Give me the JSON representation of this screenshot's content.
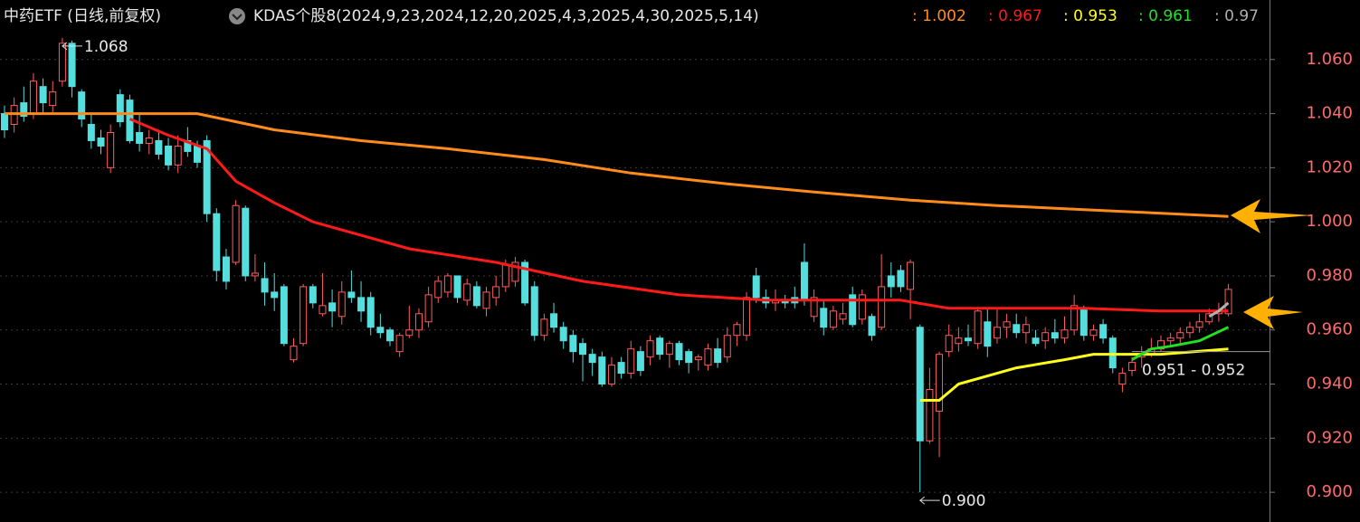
{
  "chart_data": {
    "type": "candlestick",
    "title": "中药ETF (日线,前复权)",
    "indicator": "KDAS个股8(2024,9,23,2024,12,20,2025,4,3,2025,4,30,2025,5,14)",
    "ylim": [
      0.889,
      1.082
    ],
    "yticks": [
      {
        "value": 0.9,
        "label": "0.900"
      },
      {
        "value": 0.92,
        "label": "0.920"
      },
      {
        "value": 0.94,
        "label": "0.940"
      },
      {
        "value": 0.96,
        "label": "0.960"
      },
      {
        "value": 0.98,
        "label": "0.980"
      },
      {
        "value": 1.0,
        "label": "1.000"
      },
      {
        "value": 1.02,
        "label": "1.020"
      },
      {
        "value": 1.04,
        "label": "1.040"
      },
      {
        "value": 1.06,
        "label": "1.060"
      }
    ],
    "grid": true,
    "up_color": "#ff5c5c",
    "down_color": "#54dede",
    "candles": [
      {
        "open": 1.04,
        "high": 1.043,
        "low": 1.031,
        "close": 1.034
      },
      {
        "open": 1.036,
        "high": 1.046,
        "low": 1.033,
        "close": 1.043
      },
      {
        "open": 1.044,
        "high": 1.05,
        "low": 1.037,
        "close": 1.039
      },
      {
        "open": 1.04,
        "high": 1.055,
        "low": 1.038,
        "close": 1.052
      },
      {
        "open": 1.05,
        "high": 1.053,
        "low": 1.04,
        "close": 1.044
      },
      {
        "open": 1.043,
        "high": 1.052,
        "low": 1.04,
        "close": 1.048
      },
      {
        "open": 1.052,
        "high": 1.068,
        "low": 1.05,
        "close": 1.066
      },
      {
        "open": 1.066,
        "high": 1.067,
        "low": 1.046,
        "close": 1.05
      },
      {
        "open": 1.048,
        "high": 1.049,
        "low": 1.035,
        "close": 1.038
      },
      {
        "open": 1.036,
        "high": 1.04,
        "low": 1.027,
        "close": 1.03
      },
      {
        "open": 1.031,
        "high": 1.034,
        "low": 1.025,
        "close": 1.028
      },
      {
        "open": 1.02,
        "high": 1.036,
        "low": 1.018,
        "close": 1.033
      },
      {
        "open": 1.047,
        "high": 1.049,
        "low": 1.035,
        "close": 1.037
      },
      {
        "open": 1.045,
        "high": 1.047,
        "low": 1.029,
        "close": 1.03
      },
      {
        "open": 1.033,
        "high": 1.04,
        "low": 1.026,
        "close": 1.029
      },
      {
        "open": 1.029,
        "high": 1.034,
        "low": 1.025,
        "close": 1.031
      },
      {
        "open": 1.03,
        "high": 1.034,
        "low": 1.023,
        "close": 1.025
      },
      {
        "open": 1.028,
        "high": 1.031,
        "low": 1.019,
        "close": 1.021
      },
      {
        "open": 1.021,
        "high": 1.032,
        "low": 1.018,
        "close": 1.028
      },
      {
        "open": 1.03,
        "high": 1.035,
        "low": 1.024,
        "close": 1.026
      },
      {
        "open": 1.028,
        "high": 1.03,
        "low": 1.02,
        "close": 1.022
      },
      {
        "open": 1.03,
        "high": 1.032,
        "low": 1.0,
        "close": 1.003
      },
      {
        "open": 1.003,
        "high": 1.005,
        "low": 0.978,
        "close": 0.982
      },
      {
        "open": 0.987,
        "high": 0.99,
        "low": 0.975,
        "close": 0.978
      },
      {
        "open": 0.985,
        "high": 1.008,
        "low": 0.984,
        "close": 1.006
      },
      {
        "open": 1.005,
        "high": 1.006,
        "low": 0.978,
        "close": 0.98
      },
      {
        "open": 0.98,
        "high": 0.988,
        "low": 0.978,
        "close": 0.981
      },
      {
        "open": 0.979,
        "high": 0.985,
        "low": 0.969,
        "close": 0.974
      },
      {
        "open": 0.974,
        "high": 0.981,
        "low": 0.967,
        "close": 0.972
      },
      {
        "open": 0.976,
        "high": 0.977,
        "low": 0.954,
        "close": 0.955
      },
      {
        "open": 0.949,
        "high": 0.957,
        "low": 0.948,
        "close": 0.954
      },
      {
        "open": 0.955,
        "high": 0.977,
        "low": 0.954,
        "close": 0.976
      },
      {
        "open": 0.976,
        "high": 0.977,
        "low": 0.968,
        "close": 0.97
      },
      {
        "open": 0.966,
        "high": 0.981,
        "low": 0.965,
        "close": 0.969
      },
      {
        "open": 0.97,
        "high": 0.975,
        "low": 0.961,
        "close": 0.967
      },
      {
        "open": 0.965,
        "high": 0.978,
        "low": 0.962,
        "close": 0.974
      },
      {
        "open": 0.974,
        "high": 0.982,
        "low": 0.97,
        "close": 0.972
      },
      {
        "open": 0.972,
        "high": 0.978,
        "low": 0.963,
        "close": 0.967
      },
      {
        "open": 0.972,
        "high": 0.974,
        "low": 0.958,
        "close": 0.961
      },
      {
        "open": 0.961,
        "high": 0.966,
        "low": 0.957,
        "close": 0.959
      },
      {
        "open": 0.96,
        "high": 0.961,
        "low": 0.954,
        "close": 0.956
      },
      {
        "open": 0.952,
        "high": 0.959,
        "low": 0.95,
        "close": 0.958
      },
      {
        "open": 0.958,
        "high": 0.969,
        "low": 0.957,
        "close": 0.96
      },
      {
        "open": 0.96,
        "high": 0.968,
        "low": 0.957,
        "close": 0.966
      },
      {
        "open": 0.963,
        "high": 0.976,
        "low": 0.961,
        "close": 0.973
      },
      {
        "open": 0.972,
        "high": 0.98,
        "low": 0.97,
        "close": 0.978
      },
      {
        "open": 0.974,
        "high": 0.981,
        "low": 0.972,
        "close": 0.98
      },
      {
        "open": 0.98,
        "high": 0.98,
        "low": 0.97,
        "close": 0.972
      },
      {
        "open": 0.971,
        "high": 0.979,
        "low": 0.969,
        "close": 0.977
      },
      {
        "open": 0.976,
        "high": 0.978,
        "low": 0.968,
        "close": 0.969
      },
      {
        "open": 0.968,
        "high": 0.976,
        "low": 0.965,
        "close": 0.974
      },
      {
        "open": 0.972,
        "high": 0.98,
        "low": 0.969,
        "close": 0.976
      },
      {
        "open": 0.976,
        "high": 0.986,
        "low": 0.974,
        "close": 0.984
      },
      {
        "open": 0.978,
        "high": 0.987,
        "low": 0.976,
        "close": 0.985
      },
      {
        "open": 0.985,
        "high": 0.986,
        "low": 0.969,
        "close": 0.97
      },
      {
        "open": 0.976,
        "high": 0.978,
        "low": 0.956,
        "close": 0.958
      },
      {
        "open": 0.958,
        "high": 0.966,
        "low": 0.956,
        "close": 0.964
      },
      {
        "open": 0.966,
        "high": 0.97,
        "low": 0.959,
        "close": 0.961
      },
      {
        "open": 0.961,
        "high": 0.963,
        "low": 0.953,
        "close": 0.956
      },
      {
        "open": 0.958,
        "high": 0.96,
        "low": 0.948,
        "close": 0.952
      },
      {
        "open": 0.955,
        "high": 0.957,
        "low": 0.941,
        "close": 0.951
      },
      {
        "open": 0.951,
        "high": 0.953,
        "low": 0.943,
        "close": 0.948
      },
      {
        "open": 0.95,
        "high": 0.952,
        "low": 0.939,
        "close": 0.94
      },
      {
        "open": 0.94,
        "high": 0.95,
        "low": 0.939,
        "close": 0.947
      },
      {
        "open": 0.948,
        "high": 0.95,
        "low": 0.942,
        "close": 0.944
      },
      {
        "open": 0.944,
        "high": 0.956,
        "low": 0.942,
        "close": 0.953
      },
      {
        "open": 0.952,
        "high": 0.954,
        "low": 0.943,
        "close": 0.945
      },
      {
        "open": 0.95,
        "high": 0.958,
        "low": 0.947,
        "close": 0.956
      },
      {
        "open": 0.957,
        "high": 0.958,
        "low": 0.949,
        "close": 0.951
      },
      {
        "open": 0.951,
        "high": 0.956,
        "low": 0.946,
        "close": 0.955
      },
      {
        "open": 0.955,
        "high": 0.956,
        "low": 0.947,
        "close": 0.949
      },
      {
        "open": 0.952,
        "high": 0.953,
        "low": 0.944,
        "close": 0.948
      },
      {
        "open": 0.949,
        "high": 0.951,
        "low": 0.945,
        "close": 0.95
      },
      {
        "open": 0.947,
        "high": 0.955,
        "low": 0.945,
        "close": 0.953
      },
      {
        "open": 0.953,
        "high": 0.957,
        "low": 0.946,
        "close": 0.948
      },
      {
        "open": 0.95,
        "high": 0.961,
        "low": 0.948,
        "close": 0.958
      },
      {
        "open": 0.958,
        "high": 0.963,
        "low": 0.954,
        "close": 0.962
      },
      {
        "open": 0.958,
        "high": 0.974,
        "low": 0.956,
        "close": 0.972
      },
      {
        "open": 0.98,
        "high": 0.983,
        "low": 0.97,
        "close": 0.972
      },
      {
        "open": 0.972,
        "high": 0.975,
        "low": 0.968,
        "close": 0.97
      },
      {
        "open": 0.97,
        "high": 0.975,
        "low": 0.967,
        "close": 0.971
      },
      {
        "open": 0.971,
        "high": 0.973,
        "low": 0.968,
        "close": 0.97
      },
      {
        "open": 0.972,
        "high": 0.976,
        "low": 0.968,
        "close": 0.97
      },
      {
        "open": 0.985,
        "high": 0.992,
        "low": 0.969,
        "close": 0.971
      },
      {
        "open": 0.965,
        "high": 0.975,
        "low": 0.963,
        "close": 0.972
      },
      {
        "open": 0.968,
        "high": 0.971,
        "low": 0.958,
        "close": 0.961
      },
      {
        "open": 0.961,
        "high": 0.969,
        "low": 0.96,
        "close": 0.967
      },
      {
        "open": 0.964,
        "high": 0.97,
        "low": 0.962,
        "close": 0.966
      },
      {
        "open": 0.973,
        "high": 0.976,
        "low": 0.961,
        "close": 0.962
      },
      {
        "open": 0.964,
        "high": 0.975,
        "low": 0.962,
        "close": 0.973
      },
      {
        "open": 0.965,
        "high": 0.966,
        "low": 0.956,
        "close": 0.958
      },
      {
        "open": 0.961,
        "high": 0.988,
        "low": 0.96,
        "close": 0.976
      },
      {
        "open": 0.98,
        "high": 0.985,
        "low": 0.972,
        "close": 0.976
      },
      {
        "open": 0.982,
        "high": 0.984,
        "low": 0.974,
        "close": 0.976
      },
      {
        "open": 0.975,
        "high": 0.986,
        "low": 0.964,
        "close": 0.985
      },
      {
        "open": 0.961,
        "high": 0.962,
        "low": 0.9,
        "close": 0.919
      },
      {
        "open": 0.919,
        "high": 0.946,
        "low": 0.918,
        "close": 0.938
      },
      {
        "open": 0.93,
        "high": 0.952,
        "low": 0.913,
        "close": 0.951
      },
      {
        "open": 0.952,
        "high": 0.962,
        "low": 0.95,
        "close": 0.958
      },
      {
        "open": 0.955,
        "high": 0.961,
        "low": 0.952,
        "close": 0.957
      },
      {
        "open": 0.957,
        "high": 0.962,
        "low": 0.954,
        "close": 0.956
      },
      {
        "open": 0.955,
        "high": 0.968,
        "low": 0.953,
        "close": 0.967
      },
      {
        "open": 0.963,
        "high": 0.968,
        "low": 0.95,
        "close": 0.954
      },
      {
        "open": 0.957,
        "high": 0.968,
        "low": 0.955,
        "close": 0.961
      },
      {
        "open": 0.961,
        "high": 0.966,
        "low": 0.957,
        "close": 0.963
      },
      {
        "open": 0.962,
        "high": 0.966,
        "low": 0.957,
        "close": 0.959
      },
      {
        "open": 0.959,
        "high": 0.965,
        "low": 0.955,
        "close": 0.962
      },
      {
        "open": 0.957,
        "high": 0.96,
        "low": 0.954,
        "close": 0.955
      },
      {
        "open": 0.956,
        "high": 0.961,
        "low": 0.953,
        "close": 0.959
      },
      {
        "open": 0.959,
        "high": 0.964,
        "low": 0.955,
        "close": 0.957
      },
      {
        "open": 0.957,
        "high": 0.965,
        "low": 0.955,
        "close": 0.96
      },
      {
        "open": 0.96,
        "high": 0.973,
        "low": 0.958,
        "close": 0.969
      },
      {
        "open": 0.968,
        "high": 0.969,
        "low": 0.956,
        "close": 0.958
      },
      {
        "open": 0.958,
        "high": 0.962,
        "low": 0.956,
        "close": 0.96
      },
      {
        "open": 0.962,
        "high": 0.964,
        "low": 0.955,
        "close": 0.957
      },
      {
        "open": 0.957,
        "high": 0.958,
        "low": 0.944,
        "close": 0.946
      },
      {
        "open": 0.94,
        "high": 0.946,
        "low": 0.937,
        "close": 0.944
      },
      {
        "open": 0.945,
        "high": 0.95,
        "low": 0.943,
        "close": 0.948
      },
      {
        "open": 0.95,
        "high": 0.954,
        "low": 0.946,
        "close": 0.951
      },
      {
        "open": 0.951,
        "high": 0.957,
        "low": 0.95,
        "close": 0.953
      },
      {
        "open": 0.953,
        "high": 0.958,
        "low": 0.952,
        "close": 0.956
      },
      {
        "open": 0.956,
        "high": 0.959,
        "low": 0.954,
        "close": 0.957
      },
      {
        "open": 0.957,
        "high": 0.961,
        "low": 0.955,
        "close": 0.959
      },
      {
        "open": 0.959,
        "high": 0.963,
        "low": 0.957,
        "close": 0.961
      },
      {
        "open": 0.961,
        "high": 0.966,
        "low": 0.959,
        "close": 0.963
      },
      {
        "open": 0.963,
        "high": 0.968,
        "low": 0.962,
        "close": 0.966
      },
      {
        "open": 0.966,
        "high": 0.97,
        "low": 0.963,
        "close": 0.967
      },
      {
        "open": 0.966,
        "high": 0.977,
        "low": 0.965,
        "close": 0.975
      }
    ],
    "lines": [
      {
        "label": ": 1.002",
        "color": "#ff8c1a",
        "x": [
          0,
          10,
          20,
          28,
          37,
          46,
          56,
          65,
          75,
          84,
          94,
          103,
          115,
          127
        ],
        "values": [
          1.04,
          1.04,
          1.04,
          1.034,
          1.03,
          1.027,
          1.023,
          1.018,
          1.014,
          1.011,
          1.008,
          1.006,
          1.004,
          1.002
        ]
      },
      {
        "label": ": 0.967",
        "color": "#ff1a1a",
        "x": [
          13,
          17,
          21,
          24,
          28,
          32,
          37,
          42,
          51,
          60,
          70,
          79,
          93,
          98,
          112,
          120,
          127
        ],
        "values": [
          1.038,
          1.032,
          1.027,
          1.015,
          1.007,
          1.0,
          0.995,
          0.99,
          0.985,
          0.978,
          0.973,
          0.971,
          0.971,
          0.968,
          0.968,
          0.967,
          0.967
        ]
      },
      {
        "label": ": 0.953",
        "color": "#ffff1a",
        "x": [
          95,
          97,
          99,
          102,
          105,
          110,
          113,
          120,
          127
        ],
        "values": [
          0.934,
          0.934,
          0.94,
          0.943,
          0.946,
          0.949,
          0.951,
          0.951,
          0.953
        ]
      },
      {
        "label": ": 0.961",
        "color": "#22e022",
        "x": [
          117,
          119,
          121,
          124,
          127
        ],
        "values": [
          0.949,
          0.953,
          0.954,
          0.956,
          0.961
        ]
      },
      {
        "label": ": 0.97",
        "color": "#b0b0b0",
        "x": [
          125,
          126,
          127
        ],
        "values": [
          0.965,
          0.967,
          0.97
        ]
      }
    ],
    "annotations": [
      {
        "label": "1.068",
        "value": 1.068,
        "index": 6
      },
      {
        "label": "0.900",
        "value": 0.9,
        "index": 95
      }
    ],
    "range_label": "0.951 - 0.952",
    "level_line": 0.952
  }
}
